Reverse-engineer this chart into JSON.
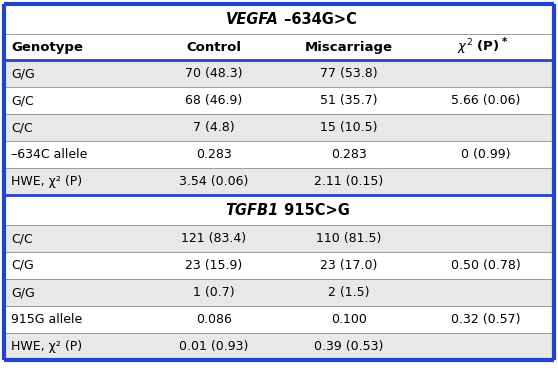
{
  "title1_italic": "VEGFA",
  "title1_rest": " –634G>C",
  "title2_italic": "TGFB1",
  "title2_rest": " 915C>G",
  "header": [
    "Genotype",
    "Control",
    "Miscarriage",
    "χ² (P)"
  ],
  "section1_rows": [
    [
      "G/G",
      "70 (48.3)",
      "77 (53.8)",
      ""
    ],
    [
      "G/C",
      "68 (46.9)",
      "51 (35.7)",
      "5.66 (0.06)"
    ],
    [
      "C/C",
      "7 (4.8)",
      "15 (10.5)",
      ""
    ],
    [
      "–634C allele",
      "0.283",
      "0.283",
      "0 (0.99)"
    ],
    [
      "HWE, χ² (P)",
      "3.54 (0.06)",
      "2.11 (0.15)",
      ""
    ]
  ],
  "section2_rows": [
    [
      "C/C",
      "121 (83.4)",
      "110 (81.5)",
      ""
    ],
    [
      "C/G",
      "23 (15.9)",
      "23 (17.0)",
      "0.50 (0.78)"
    ],
    [
      "G/G",
      "1 (0.7)",
      "2 (1.5)",
      ""
    ],
    [
      "915G allele",
      "0.086",
      "0.100",
      "0.32 (0.57)"
    ],
    [
      "HWE, χ² (P)",
      "0.01 (0.93)",
      "0.39 (0.53)",
      ""
    ]
  ],
  "gray_color": "#e8e8e8",
  "white_color": "#ffffff",
  "border_color": "#2244cc",
  "thin_line_color": "#999999",
  "thick_line_color": "#1a3399",
  "fs_data": 9.0,
  "fs_header": 9.5,
  "fs_title": 10.5
}
